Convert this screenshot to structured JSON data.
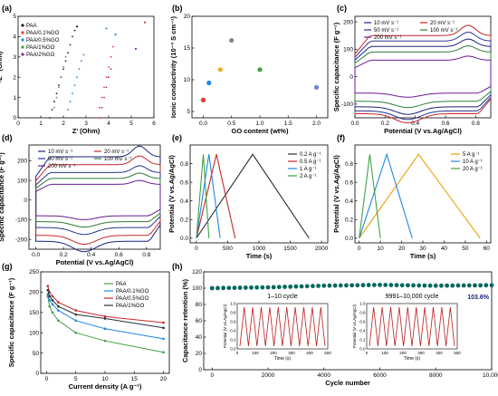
{
  "chart_data": [
    {
      "panel": "(a)",
      "type": "scatter",
      "xlabel": "Z' (Ohm)",
      "ylabel": "-Z'' (Ohm)",
      "xlim": [
        0,
        6
      ],
      "ylim": [
        0,
        5
      ],
      "xticks": [
        "0",
        "1",
        "2",
        "3",
        "4",
        "5",
        "6"
      ],
      "yticks": [
        "0",
        "1",
        "2",
        "3",
        "4",
        "5"
      ],
      "legend_position": "top-left",
      "series": [
        {
          "name": "PAA",
          "color": "#222222",
          "x": [
            1.4,
            1.5,
            1.6,
            1.7,
            1.8,
            1.9,
            2.0,
            2.1,
            2.2,
            2.3,
            2.4,
            2.5
          ],
          "y": [
            0,
            0.4,
            0.8,
            1.2,
            1.6,
            2.0,
            2.4,
            2.8,
            3.2,
            3.6,
            4.0,
            4.3
          ]
        },
        {
          "name": "PAA/0.1%GO",
          "color": "#e53935",
          "x": [
            3.5,
            3.6,
            3.7,
            3.8,
            3.9,
            4.0,
            4.1,
            4.2
          ],
          "y": [
            0,
            0.5,
            1.0,
            1.5,
            2.0,
            2.5,
            3.0,
            3.5
          ]
        },
        {
          "name": "PAA/0.5%GO",
          "color": "#1e88e5",
          "x": [
            2.1,
            2.2,
            2.3,
            2.4,
            2.5,
            2.6,
            2.7,
            2.8,
            2.9
          ],
          "y": [
            0,
            0.4,
            0.8,
            1.2,
            1.6,
            2.0,
            2.4,
            2.8,
            3.1
          ]
        },
        {
          "name": "PAA/1%GO",
          "color": "#43a047",
          "x": [
            1.5,
            1.6,
            1.7,
            1.8,
            1.9,
            2.0,
            2.1
          ],
          "y": [
            0,
            0.5,
            1.0,
            1.5,
            2.0,
            2.5,
            3.0
          ]
        },
        {
          "name": "PAA/2%GO",
          "color": "#8e24aa",
          "x": [
            3.6,
            3.7,
            3.8,
            3.9,
            4.0,
            4.1
          ],
          "y": [
            0,
            0.5,
            1.0,
            1.5,
            2.0,
            2.4
          ]
        }
      ],
      "extra_points": [
        {
          "color": "#1e88e5",
          "x": 4.3,
          "y": 4.1
        },
        {
          "color": "#e53935",
          "x": 5.6,
          "y": 4.7
        },
        {
          "color": "#43a047",
          "x": 3.9,
          "y": 4.4
        },
        {
          "color": "#8e24aa",
          "x": 5.2,
          "y": 3.4
        },
        {
          "color": "#222222",
          "x": 2.6,
          "y": 4.5
        }
      ]
    },
    {
      "panel": "(b)",
      "type": "scatter",
      "xlabel": "GO content (wt%)",
      "ylabel": "Ionic conductivity (10⁻³ S cm⁻¹)",
      "xlim": [
        -0.2,
        2.2
      ],
      "ylim": [
        4,
        20
      ],
      "xticks": [
        "0.0",
        "0.5",
        "1.0",
        "1.5",
        "2.0"
      ],
      "yticks": [
        "5",
        "10",
        "15",
        "20"
      ],
      "x": [
        0,
        0.1,
        0.3,
        0.5,
        1.0,
        2.0
      ],
      "y": [
        6.8,
        9.5,
        11.6,
        16.2,
        11.6,
        8.8
      ],
      "colors": [
        "#e53935",
        "#1e88e5",
        "#f9a825",
        "#888888",
        "#43a047",
        "#7986cb"
      ]
    },
    {
      "panel": "(c)",
      "type": "line",
      "xlabel": "Potential (V vs.Ag/AgCl)",
      "ylabel": "Specific capacitance (F g⁻¹)",
      "xlim": [
        0,
        0.9
      ],
      "ylim": [
        -150,
        220
      ],
      "xticks": [
        "0.0",
        "0.2",
        "0.4",
        "0.6",
        "0.8"
      ],
      "yticks": [
        "-100",
        "0",
        "100",
        "200"
      ],
      "legend_position": "top",
      "series": [
        {
          "name": "10 mV s⁻¹",
          "color": "#1a237e",
          "upper": 110,
          "lower": -110
        },
        {
          "name": "20 mV s⁻¹",
          "color": "#c62828",
          "upper": 150,
          "lower": -135
        },
        {
          "name": "50 mV s⁻¹",
          "color": "#283593",
          "upper": 130,
          "lower": -125
        },
        {
          "name": "100 mV s⁻¹",
          "color": "#2e7d32",
          "upper": 90,
          "lower": -90
        },
        {
          "name": "200 mV s⁻¹",
          "color": "#6a1b9a",
          "upper": 60,
          "lower": -60
        }
      ]
    },
    {
      "panel": "(d)",
      "type": "line",
      "xlabel": "Potential (V vs.Ag/AgCl)",
      "ylabel": "Specific capacitance (F g⁻¹)",
      "xlim": [
        -0.05,
        0.9
      ],
      "ylim": [
        -250,
        280
      ],
      "xticks": [
        "0.0",
        "0.2",
        "0.4",
        "0.6",
        "0.8"
      ],
      "yticks": [
        "-200",
        "-100",
        "0",
        "100",
        "200"
      ],
      "legend_position": "top",
      "series": [
        {
          "name": "10 mV s⁻¹",
          "color": "#1a237e",
          "upper": 220,
          "lower": -210
        },
        {
          "name": "20 mV s⁻¹",
          "color": "#c62828",
          "upper": 180,
          "lower": -180
        },
        {
          "name": "50 mV s⁻¹",
          "color": "#283593",
          "upper": 140,
          "lower": -140
        },
        {
          "name": "100 mV s⁻¹",
          "color": "#2e7d32",
          "upper": 110,
          "lower": -110
        },
        {
          "name": "200 mV s⁻¹",
          "color": "#6a1b9a",
          "upper": 80,
          "lower": -80
        }
      ]
    },
    {
      "panel": "(e)",
      "type": "line",
      "xlabel": "Time (s)",
      "ylabel": "Potential (V vs.Ag/AgCl)",
      "xlim": [
        -100,
        2100
      ],
      "ylim": [
        -0.05,
        1.0
      ],
      "xticks": [
        "0",
        "500",
        "1000",
        "1500",
        "2000"
      ],
      "yticks": [
        "0.0",
        "0.2",
        "0.4",
        "0.6",
        "0.8"
      ],
      "legend_position": "top-right",
      "series": [
        {
          "name": "0.2 A g⁻¹",
          "color": "#263238",
          "t_peak": 900,
          "t_end": 1800
        },
        {
          "name": "0.5 A g⁻¹",
          "color": "#c62828",
          "t_peak": 320,
          "t_end": 620
        },
        {
          "name": "1 A g⁻¹",
          "color": "#1e88e5",
          "t_peak": 200,
          "t_end": 380
        },
        {
          "name": "2 A g⁻¹",
          "color": "#43a047",
          "t_peak": 110,
          "t_end": 200
        }
      ]
    },
    {
      "panel": "(f)",
      "type": "line",
      "xlabel": "Time (s)",
      "ylabel": "Potential (V vs.Ag/AgCl)",
      "xlim": [
        -2,
        62
      ],
      "ylim": [
        -0.05,
        1.0
      ],
      "xticks": [
        "0",
        "10",
        "20",
        "30",
        "40",
        "50",
        "60"
      ],
      "yticks": [
        "0.0",
        "0.2",
        "0.4",
        "0.6",
        "0.8"
      ],
      "legend_position": "top-right",
      "series": [
        {
          "name": "5 A g⁻¹",
          "color": "#e6a100",
          "t_peak": 28,
          "t_end": 57
        },
        {
          "name": "10 A g⁻¹",
          "color": "#1e88e5",
          "t_peak": 13,
          "t_end": 25
        },
        {
          "name": "20 A g⁻¹",
          "color": "#43a047",
          "t_peak": 5,
          "t_end": 10
        }
      ]
    },
    {
      "panel": "(g)",
      "type": "line",
      "xlabel": "Current density (A g⁻¹)",
      "ylabel": "Specific capacitance (F g⁻¹)",
      "xlim": [
        -1,
        21
      ],
      "ylim": [
        0,
        250
      ],
      "xticks": [
        "0",
        "5",
        "10",
        "15",
        "20"
      ],
      "yticks": [
        "0",
        "50",
        "100",
        "150",
        "200",
        "250"
      ],
      "legend_position": "top-right",
      "x": [
        0.2,
        0.5,
        1,
        2,
        5,
        10,
        20
      ],
      "series": [
        {
          "name": "PAA",
          "color": "#43a047",
          "values": [
            190,
            165,
            150,
            130,
            100,
            80,
            52
          ]
        },
        {
          "name": "PAA/0.1%GO",
          "color": "#1e88e5",
          "values": [
            195,
            180,
            170,
            155,
            130,
            110,
            85
          ]
        },
        {
          "name": "PAA/0.5%GO",
          "color": "#c62828",
          "values": [
            215,
            200,
            190,
            175,
            155,
            140,
            125
          ]
        },
        {
          "name": "PAA/1%GO",
          "color": "#263238",
          "values": [
            205,
            190,
            180,
            165,
            145,
            135,
            112
          ]
        }
      ]
    },
    {
      "panel": "(h)",
      "type": "scatter",
      "xlabel": "Cycle number",
      "ylabel": "Capacitance retention (%)",
      "xlim": [
        -300,
        10000
      ],
      "ylim": [
        0,
        120
      ],
      "xticks": [
        "0",
        "2000",
        "4000",
        "6000",
        "8000",
        "10,000"
      ],
      "yticks": [
        "0",
        "20",
        "40",
        "60",
        "80",
        "100",
        "120"
      ],
      "final_retention": "103.6%",
      "color": "#00695c",
      "x": [
        0,
        2000,
        4000,
        6000,
        8000,
        10000
      ],
      "values": [
        100,
        101,
        103,
        104,
        103,
        103.6
      ],
      "inset_left": {
        "title": "1–10 cycle",
        "xlabel": "Time (s)",
        "ylabel": "Potential (V vs.Ag/AgCl)",
        "xticks": [
          "0",
          "100",
          "200",
          "300",
          "400",
          "500"
        ],
        "yticks": [
          "0.0",
          "0.2",
          "0.4",
          "0.6",
          "0.8",
          "1.0"
        ]
      },
      "inset_right": {
        "title": "9991–10,000 cycle",
        "xlabel": "Time (s)",
        "ylabel": "Potential (V vs.Ag/AgCl)",
        "xticks": [
          "0",
          "100",
          "200",
          "300",
          "400",
          "500"
        ],
        "yticks": [
          "0.0",
          "0.2",
          "0.4",
          "0.6",
          "0.8",
          "1.0"
        ]
      }
    }
  ]
}
